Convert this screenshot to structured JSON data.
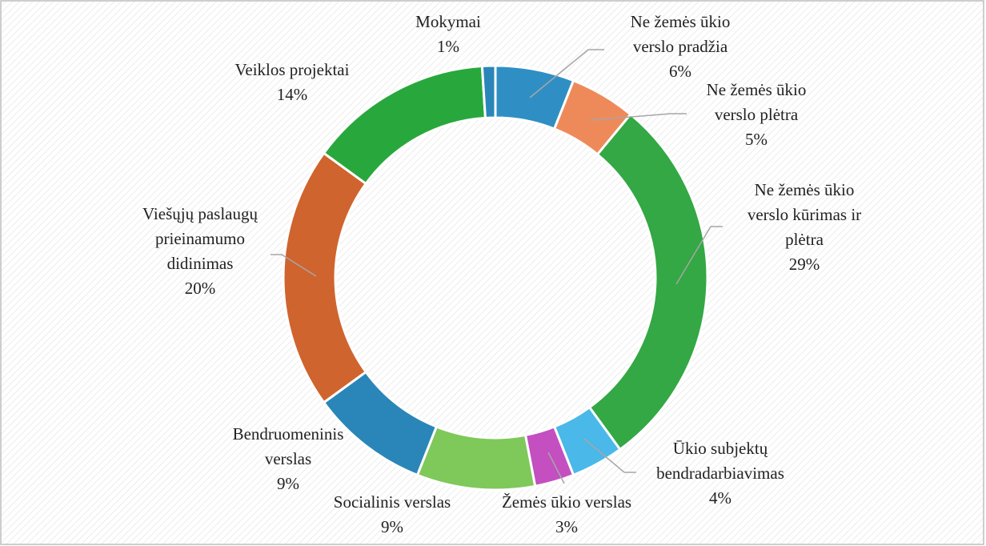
{
  "chart_data": {
    "type": "donut",
    "categories": [
      "Ne žemės ūkio verslo pradžia",
      "Ne žemės ūkio verslo plėtra",
      "Ne žemės ūkio verslo kūrimas ir plėtra",
      "Ūkio subjektų bendradarbiavimas",
      "Žemės ūkio verslas",
      "Socialinis verslas",
      "Bendruomeninis verslas",
      "Viešųjų paslaugų prieinamumo didinimas",
      "Veiklos projektai",
      "Mokymai"
    ],
    "values": [
      6,
      5,
      29,
      4,
      3,
      9,
      9,
      20,
      14,
      1
    ],
    "value_labels": [
      "6%",
      "5%",
      "29%",
      "4%",
      "3%",
      "9%",
      "9%",
      "20%",
      "14%",
      "1%"
    ],
    "colors": [
      "#2f8fc4",
      "#ee8a5a",
      "#33a844",
      "#4ab8e8",
      "#c44fc0",
      "#7fc85a",
      "#2a86b8",
      "#d0642e",
      "#28a83c",
      "#2a86b8"
    ]
  }
}
